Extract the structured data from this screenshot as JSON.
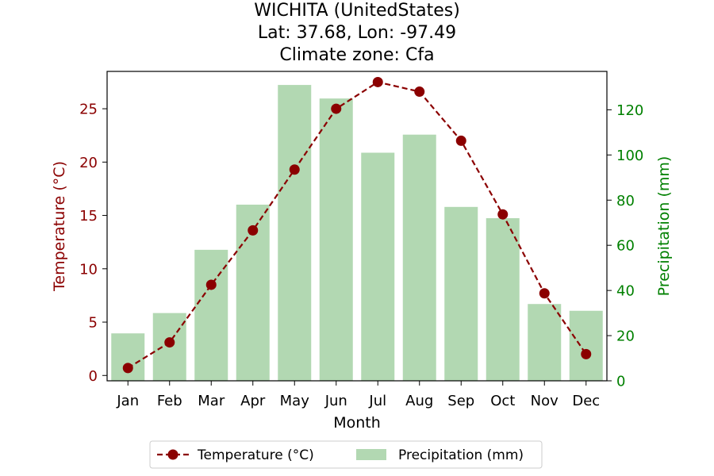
{
  "title": {
    "line1": "WICHITA (UnitedStates)",
    "line2": "Lat: 37.68, Lon: -97.49",
    "line3": "Climate zone: Cfa"
  },
  "colors": {
    "temperature": "#8b0000",
    "precipitation": "#b2d8b2",
    "precip_axis": "#008000"
  },
  "chart_data": {
    "type": "bar",
    "categories": [
      "Jan",
      "Feb",
      "Mar",
      "Apr",
      "May",
      "Jun",
      "Jul",
      "Aug",
      "Sep",
      "Oct",
      "Nov",
      "Dec"
    ],
    "xlabel": "Month",
    "series": [
      {
        "name": "Temperature (°C)",
        "type": "line",
        "axis": "left",
        "values": [
          0.7,
          3.1,
          8.5,
          13.6,
          19.3,
          25.0,
          27.5,
          26.6,
          22.0,
          15.1,
          7.7,
          2.0
        ]
      },
      {
        "name": "Precipitation (mm)",
        "type": "bar",
        "axis": "right",
        "values": [
          21,
          30,
          58,
          78,
          131,
          125,
          101,
          109,
          77,
          72,
          34,
          31
        ]
      }
    ],
    "left_axis": {
      "label": "Temperature (°C)",
      "ylim": [
        -0.5,
        28.5
      ],
      "ticks": [
        0,
        5,
        10,
        15,
        20,
        25
      ]
    },
    "right_axis": {
      "label": "Precipitation (mm)",
      "ylim": [
        0,
        137
      ],
      "ticks": [
        0,
        20,
        40,
        60,
        80,
        100,
        120
      ]
    },
    "legend": {
      "placement": "bottom-center"
    },
    "grid": false
  }
}
